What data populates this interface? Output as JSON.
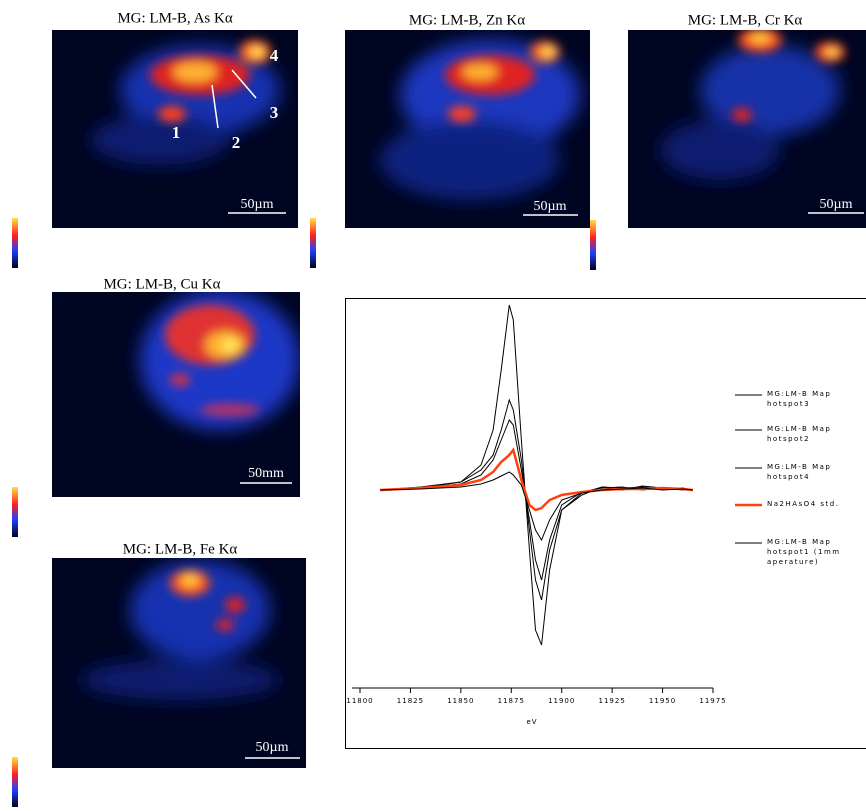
{
  "maps": [
    {
      "title": "MG: LM-B, As Kα",
      "scale_label": "50µm",
      "hotspots": [
        "1",
        "2",
        "3",
        "4"
      ]
    },
    {
      "title": "MG: LM-B, Zn Kα",
      "scale_label": "50µm"
    },
    {
      "title": "MG: LM-B, Cr Kα",
      "scale_label": "50µm"
    },
    {
      "title": "MG: LM-B, Cu Kα",
      "scale_label": "50mm"
    },
    {
      "title": "MG: LM-B, Fe Kα",
      "scale_label": "50µm"
    }
  ],
  "chart_data": {
    "type": "line",
    "xlabel": "eV",
    "x": [
      11810,
      11830,
      11850,
      11860,
      11866,
      11870,
      11874,
      11876,
      11880,
      11884,
      11887,
      11890,
      11894,
      11900,
      11910,
      11920,
      11930,
      11940,
      11950,
      11960,
      11965
    ],
    "xlim": [
      11800,
      11975
    ],
    "xticks": [
      11800,
      11825,
      11850,
      11875,
      11900,
      11925,
      11950,
      11975
    ],
    "series": [
      {
        "name": "MG:LM-B Map hotspot3",
        "color": "#000000",
        "values": [
          0,
          0.2,
          0.8,
          2.5,
          6,
          12,
          18.5,
          17,
          5,
          -6,
          -14,
          -15.5,
          -8,
          -2,
          -0.5,
          0.3,
          0,
          0.4,
          0.2,
          0,
          0
        ]
      },
      {
        "name": "MG:LM-B Map hotspot2",
        "color": "#000000",
        "values": [
          0,
          0.3,
          0.8,
          2,
          3.5,
          6,
          9,
          8,
          3,
          -4,
          -9,
          -11,
          -6,
          -2,
          -0.3,
          0.3,
          0.2,
          0.3,
          0.1,
          0.2,
          0
        ]
      },
      {
        "name": "MG:LM-B Map hotspot4",
        "color": "#000000",
        "values": [
          0,
          0.2,
          0.6,
          1.5,
          3,
          5,
          7,
          6.5,
          2,
          -3,
          -7,
          -9,
          -5,
          -1.5,
          -0.2,
          0.2,
          0.3,
          0,
          0.2,
          0.1,
          0
        ]
      },
      {
        "name": "Na2HAsO4 std.",
        "color": "#ff4010",
        "values": [
          0,
          0.2,
          0.5,
          1,
          1.8,
          2.8,
          3.5,
          4,
          1,
          -1.5,
          -2,
          -1.8,
          -1,
          -0.5,
          -0.2,
          0,
          0.1,
          0.1,
          0.2,
          0.1,
          0
        ]
      },
      {
        "name": "MG:LM-B Map hotspot1 (1mm aperature)",
        "color": "#000000",
        "values": [
          0,
          0.1,
          0.3,
          0.6,
          1,
          1.4,
          1.8,
          1.5,
          0.5,
          -2,
          -4,
          -5,
          -3,
          -1,
          -0.3,
          0,
          0.1,
          0.2,
          0,
          0.1,
          0
        ]
      }
    ]
  }
}
